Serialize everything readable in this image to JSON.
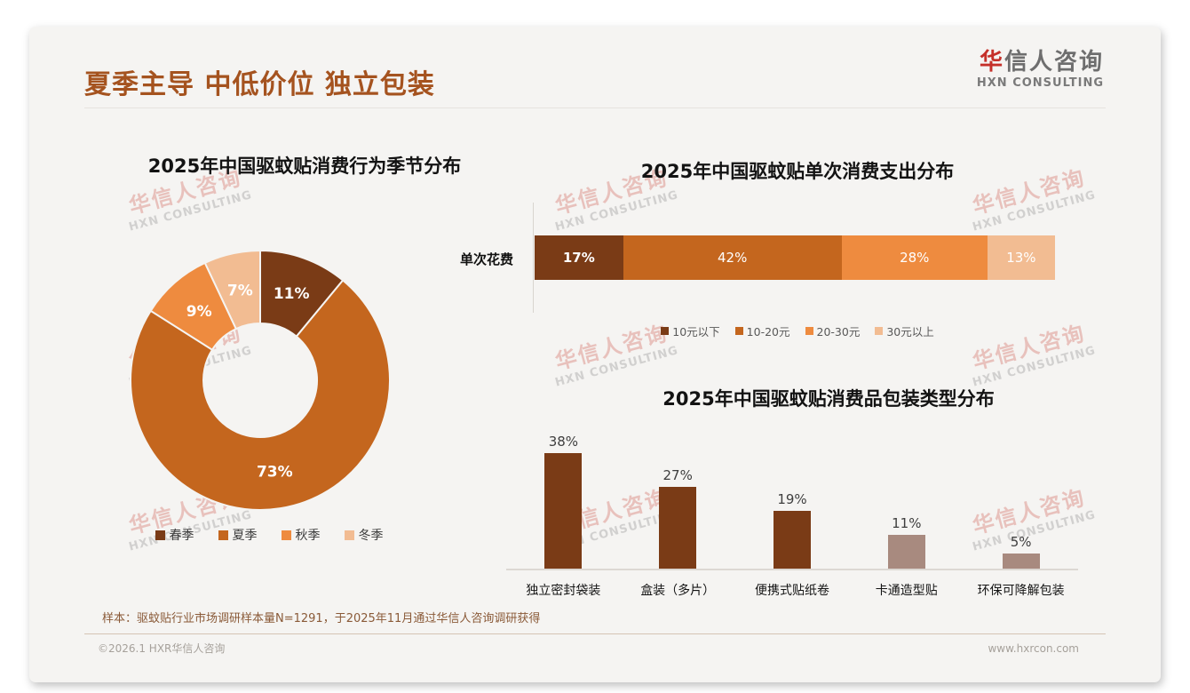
{
  "slide": {
    "title": "夏季主导 中低价位 独立包装",
    "logo": {
      "cn_accent": "华",
      "cn_rest": "信人咨询",
      "en": "HXN CONSULTING"
    },
    "watermark": {
      "line1": "华信人咨询",
      "line2": "HXN CONSULTING"
    },
    "note": "样本：驱蚊贴行业市场调研样本量N=1291，于2025年11月通过华信人咨询调研获得",
    "copyright": "©2026.1 HXR华信人咨询",
    "website": "www.hxrcon.com"
  },
  "colors": {
    "accent_title": "#A5531F",
    "dark_brown": "#7A3B16",
    "orange": "#C4661E",
    "light_orange": "#EE8B3F",
    "peach": "#F2BC92",
    "mauve": "#A88A7F",
    "logo_red": "#C53029",
    "card_bg": "#F5F4F2"
  },
  "chart_data": [
    {
      "type": "pie",
      "subtype": "donut",
      "title": "2025年中国驱蚊贴消费行为季节分布",
      "categories": [
        "春季",
        "夏季",
        "秋季",
        "冬季"
      ],
      "values": [
        11,
        73,
        9,
        7
      ],
      "labels": [
        "11%",
        "73%",
        "9%",
        "7%"
      ],
      "colors": [
        "#7A3B16",
        "#C4661E",
        "#EE8B3F",
        "#F2BC92"
      ],
      "legend_position": "bottom",
      "start_angle_deg": 0,
      "direction": "clockwise"
    },
    {
      "type": "bar",
      "subtype": "horizontal-stacked",
      "title": "2025年中国驱蚊贴单次消费支出分布",
      "row_label": "单次花费",
      "categories": [
        "10元以下",
        "10-20元",
        "20-30元",
        "30元以上"
      ],
      "values": [
        17,
        42,
        28,
        13
      ],
      "labels": [
        "17%",
        "42%",
        "28%",
        "13%"
      ],
      "colors": [
        "#7A3B16",
        "#C4661E",
        "#EE8B3F",
        "#F2BC92"
      ],
      "legend_position": "bottom",
      "xlim": [
        0,
        100
      ]
    },
    {
      "type": "bar",
      "subtype": "vertical",
      "title": "2025年中国驱蚊贴消费品包装类型分布",
      "categories": [
        "独立密封袋装",
        "盒装（多片）",
        "便携式贴纸卷",
        "卡通造型贴",
        "环保可降解包装"
      ],
      "values": [
        38,
        27,
        19,
        11,
        5
      ],
      "labels": [
        "38%",
        "27%",
        "19%",
        "11%",
        "5%"
      ],
      "colors": [
        "#7A3B16",
        "#7A3B16",
        "#7A3B16",
        "#A88A7F",
        "#A88A7F"
      ],
      "ylim": [
        0,
        45
      ],
      "grid": false
    }
  ]
}
